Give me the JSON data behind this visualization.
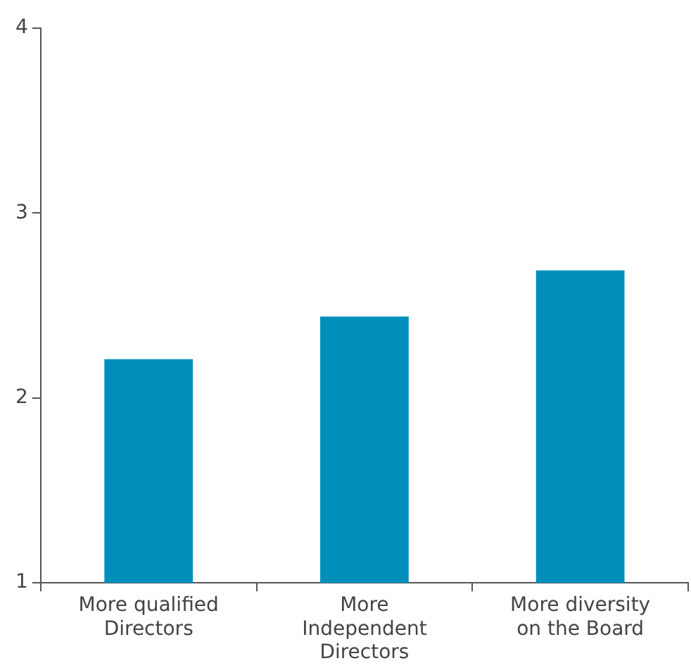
{
  "chart_data": {
    "type": "bar",
    "categories": [
      "More qualified Directors",
      "More Independent Directors",
      "More diversity on the Board"
    ],
    "values": [
      2.21,
      2.44,
      2.69
    ],
    "color": "#008fbb",
    "ylim": [
      1,
      4
    ],
    "yticks": [
      1,
      2,
      3,
      4
    ],
    "grid": false
  }
}
